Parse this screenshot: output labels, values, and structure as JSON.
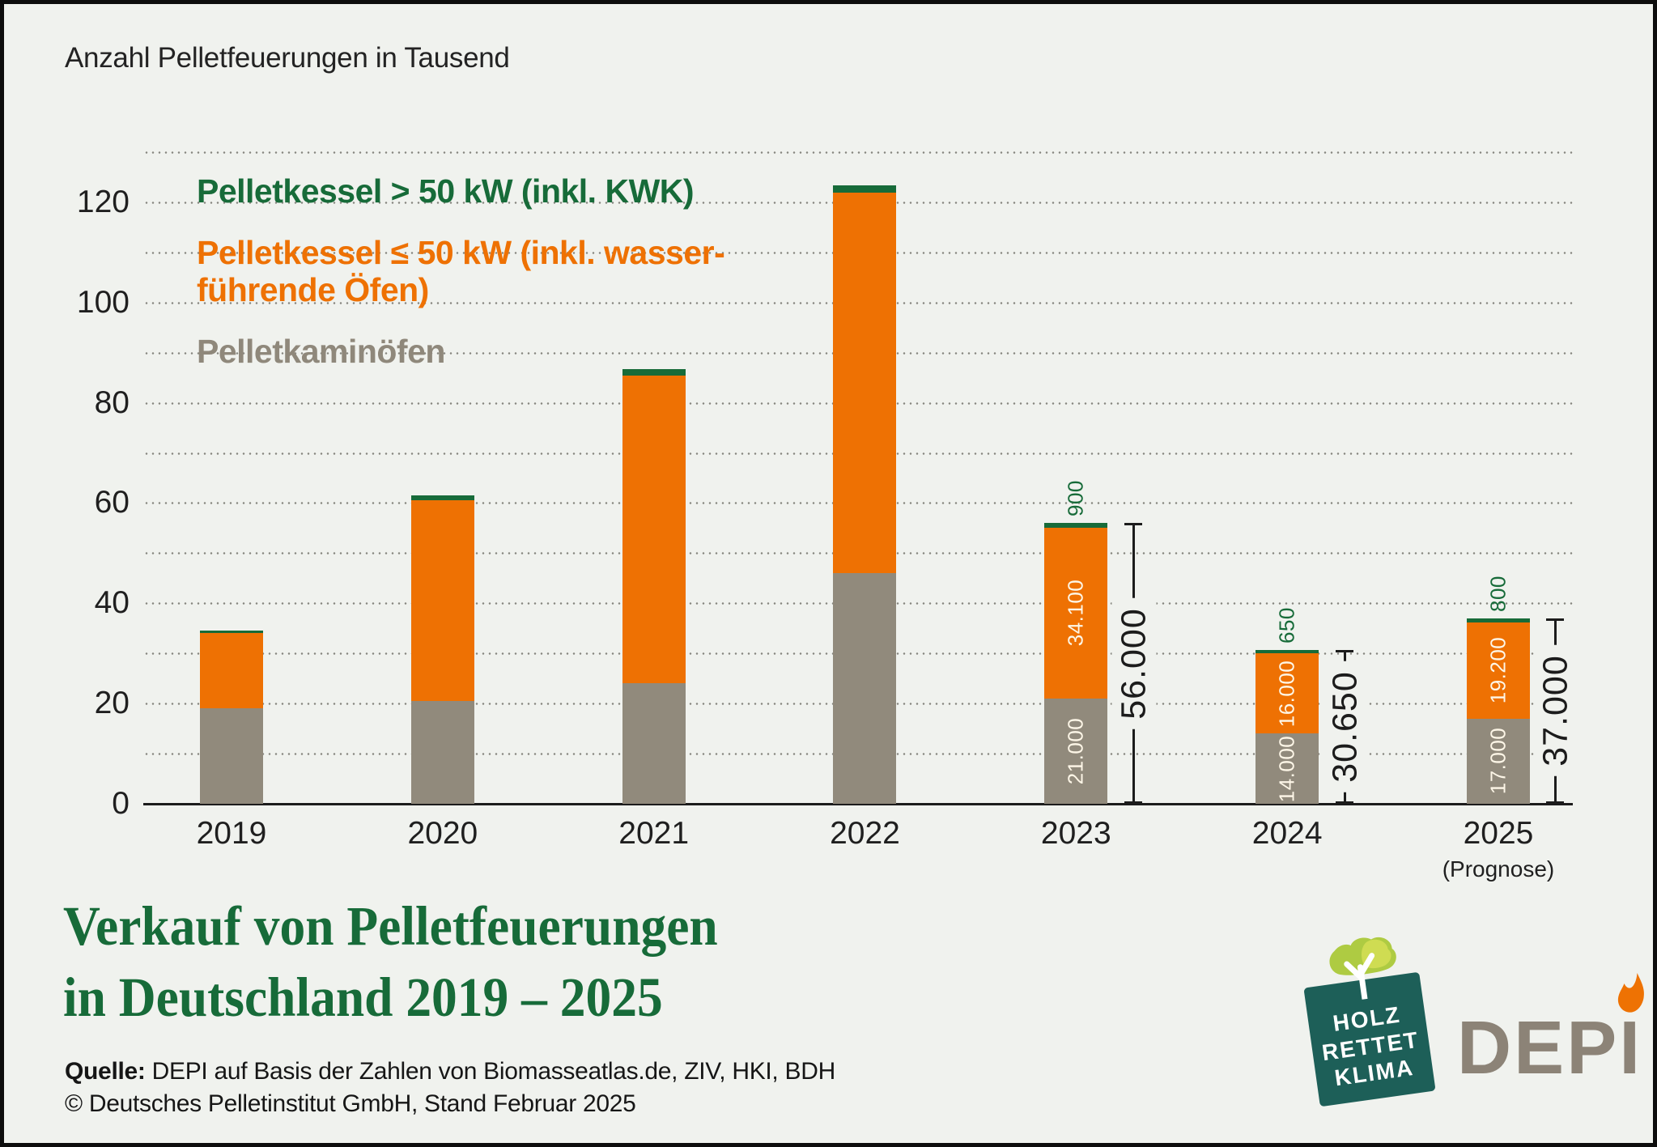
{
  "header": {
    "note": "Anzahl Pelletfeuerungen in Tausend"
  },
  "legend": [
    {
      "lines": [
        "Pelletkessel > 50 kW (inkl. KWK)"
      ],
      "color": "#176b39"
    },
    {
      "lines": [
        "Pelletkessel ≤ 50 kW (inkl. wasser-",
        "führende Öfen)"
      ],
      "color": "#ee7103"
    },
    {
      "lines": [
        "Pelletkaminöfen"
      ],
      "color": "#8f887b"
    }
  ],
  "chart_data": {
    "type": "bar",
    "stacked": true,
    "title": "Anzahl Pelletfeuerungen in Tausend",
    "unit": "Tausend",
    "categories": [
      "2019",
      "2020",
      "2021",
      "2022",
      "2023",
      "2024",
      "2025"
    ],
    "category_note": {
      "index": 6,
      "label": "(Prognose)"
    },
    "ylim": [
      0,
      130
    ],
    "yticks": [
      0,
      20,
      40,
      60,
      80,
      100,
      120
    ],
    "grid_interval": 10,
    "grid": "dotted-horizontal",
    "legend_position": "top-left-inside",
    "series": [
      {
        "name": "Pelletkaminöfen",
        "color": "#918a7c",
        "values": [
          19,
          20.5,
          24,
          46,
          21,
          14,
          17
        ],
        "labels": [
          null,
          null,
          null,
          null,
          "21.000",
          "14.000",
          "17.000"
        ]
      },
      {
        "name": "Pelletkessel ≤ 50 kW (inkl. wasserführende Öfen)",
        "color": "#ee7103",
        "values": [
          15,
          40,
          61.5,
          76,
          34.1,
          16,
          19.2
        ],
        "labels": [
          null,
          null,
          null,
          null,
          "34.100",
          "16.000",
          "19.200"
        ]
      },
      {
        "name": "Pelletkessel > 50 kW (inkl. KWK)",
        "color": "#176b39",
        "values": [
          0.6,
          1,
          1.3,
          1.3,
          0.9,
          0.65,
          0.8
        ],
        "labels": [
          null,
          null,
          null,
          null,
          "900",
          "650",
          "800"
        ]
      }
    ],
    "totals": [
      null,
      null,
      null,
      null,
      "56.000",
      "30.650",
      "37.000"
    ]
  },
  "footer": {
    "title_line1": "Verkauf von Pelletfeuerungen",
    "title_line2": "in Deutschland 2019 – 2025",
    "source_label": "Quelle:",
    "source_rest": " DEPI auf Basis der Zahlen von Biomasseatlas.de, ZIV, HKI, BDH",
    "source_line2": "© Deutsches Pelletinstitut GmbH, Stand Februar 2025"
  },
  "logos": {
    "hrk": {
      "lines": [
        "HOLZ",
        "RETTET",
        "KLIMA"
      ],
      "bg": "#1d5f58"
    },
    "depi": {
      "text": "DEPI",
      "color": "#8c8377",
      "flame": "#ee7203"
    }
  }
}
